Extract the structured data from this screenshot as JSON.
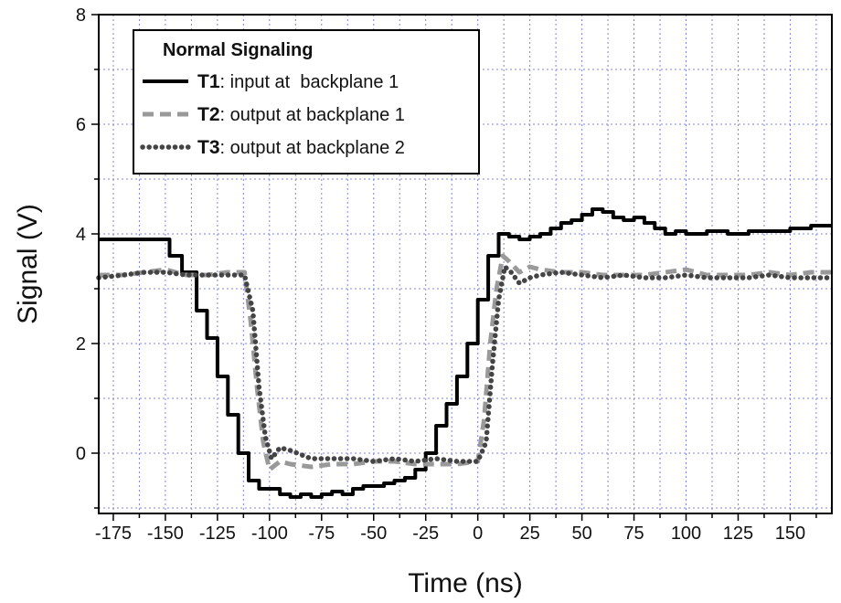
{
  "chart_data": {
    "type": "line",
    "title": "",
    "xlabel": "Time (ns)",
    "ylabel": "Signal (V)",
    "xlim": [
      -182,
      170
    ],
    "ylim": [
      -1.1,
      8.0
    ],
    "x_ticks": [
      -175,
      -150,
      -125,
      -100,
      -75,
      -50,
      -25,
      0,
      25,
      50,
      75,
      100,
      125,
      150
    ],
    "y_ticks": [
      0,
      2,
      4,
      6,
      8
    ],
    "grid": true,
    "legend": {
      "title": "Normal Signaling",
      "placement": "top-left",
      "entries": [
        {
          "id": "T1",
          "label": ": input at  backplane 1"
        },
        {
          "id": "T2",
          "label": ": output at backplane 1"
        },
        {
          "id": "T3",
          "label": ": output at backplane 2"
        }
      ]
    },
    "series": [
      {
        "name": "T1",
        "style": "solid",
        "color": "#000000",
        "x": [
          -182,
          -155,
          -148,
          -142,
          -135,
          -130,
          -125,
          -120,
          -115,
          -110,
          -105,
          -100,
          -95,
          -90,
          -85,
          -80,
          -75,
          -70,
          -65,
          -60,
          -55,
          -50,
          -45,
          -40,
          -35,
          -30,
          -25,
          -20,
          -15,
          -10,
          -5,
          0,
          5,
          10,
          15,
          20,
          25,
          30,
          35,
          40,
          45,
          50,
          55,
          60,
          65,
          70,
          75,
          80,
          85,
          90,
          95,
          100,
          110,
          120,
          130,
          140,
          150,
          160,
          170
        ],
        "y": [
          3.9,
          3.9,
          3.6,
          3.3,
          2.6,
          2.1,
          1.4,
          0.7,
          0.0,
          -0.5,
          -0.65,
          -0.65,
          -0.75,
          -0.8,
          -0.75,
          -0.8,
          -0.75,
          -0.7,
          -0.75,
          -0.65,
          -0.6,
          -0.6,
          -0.55,
          -0.5,
          -0.45,
          -0.3,
          0.0,
          0.5,
          0.9,
          1.4,
          2.0,
          2.8,
          3.6,
          4.0,
          3.95,
          3.9,
          3.95,
          4.0,
          4.1,
          4.2,
          4.25,
          4.35,
          4.45,
          4.4,
          4.3,
          4.25,
          4.3,
          4.2,
          4.1,
          4.0,
          4.05,
          4.0,
          4.05,
          4.0,
          4.05,
          4.05,
          4.1,
          4.15,
          4.15
        ]
      },
      {
        "name": "T2",
        "style": "dashed",
        "color": "#999999",
        "x": [
          -182,
          -170,
          -160,
          -150,
          -140,
          -130,
          -120,
          -112,
          -109,
          -106,
          -103,
          -100,
          -95,
          -90,
          -80,
          -70,
          -60,
          -50,
          -40,
          -30,
          -20,
          -10,
          0,
          3,
          6,
          9,
          12,
          15,
          20,
          25,
          30,
          40,
          50,
          60,
          70,
          80,
          90,
          100,
          110,
          120,
          130,
          140,
          150,
          160,
          170
        ],
        "y": [
          3.25,
          3.25,
          3.3,
          3.35,
          3.25,
          3.25,
          3.3,
          3.3,
          2.4,
          1.2,
          0.2,
          -0.3,
          -0.15,
          -0.2,
          -0.25,
          -0.2,
          -0.2,
          -0.15,
          -0.15,
          -0.2,
          -0.2,
          -0.2,
          -0.15,
          0.6,
          2.0,
          3.0,
          3.6,
          3.5,
          3.3,
          3.4,
          3.35,
          3.3,
          3.3,
          3.25,
          3.25,
          3.25,
          3.3,
          3.35,
          3.25,
          3.25,
          3.25,
          3.3,
          3.25,
          3.3,
          3.3
        ]
      },
      {
        "name": "T3",
        "style": "dotted",
        "color": "#444444",
        "x": [
          -182,
          -170,
          -160,
          -150,
          -140,
          -130,
          -120,
          -112,
          -108,
          -105,
          -102,
          -99,
          -95,
          -90,
          -80,
          -70,
          -60,
          -50,
          -40,
          -30,
          -20,
          -10,
          0,
          4,
          7,
          10,
          13,
          16,
          20,
          25,
          30,
          40,
          50,
          60,
          70,
          80,
          90,
          100,
          110,
          120,
          130,
          140,
          150,
          160,
          170
        ],
        "y": [
          3.2,
          3.25,
          3.3,
          3.3,
          3.25,
          3.25,
          3.25,
          3.25,
          2.6,
          1.2,
          0.3,
          -0.1,
          0.1,
          0.05,
          -0.1,
          -0.1,
          -0.1,
          -0.15,
          -0.1,
          -0.15,
          -0.1,
          -0.15,
          -0.15,
          0.2,
          1.6,
          2.8,
          3.4,
          3.3,
          3.1,
          3.2,
          3.25,
          3.3,
          3.25,
          3.2,
          3.25,
          3.2,
          3.2,
          3.25,
          3.2,
          3.2,
          3.2,
          3.25,
          3.2,
          3.2,
          3.2
        ]
      }
    ]
  }
}
